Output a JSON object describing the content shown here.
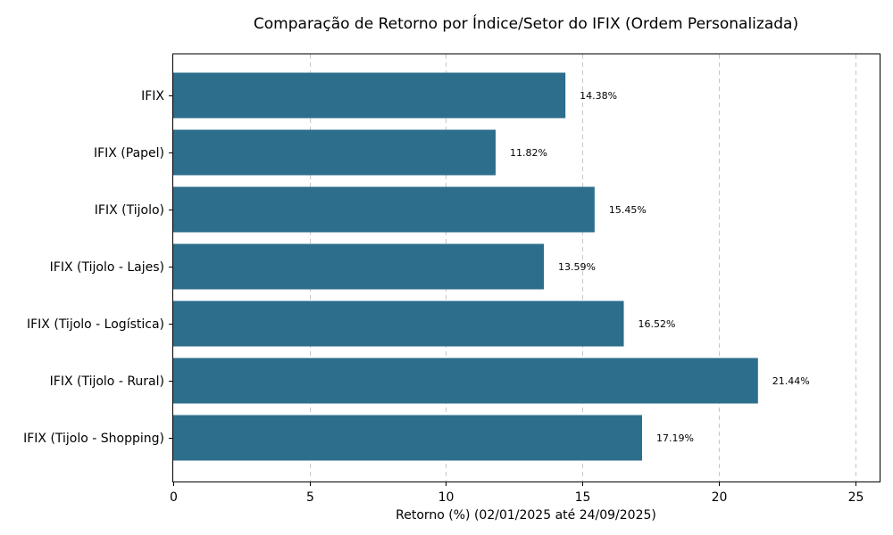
{
  "chart_data": {
    "type": "bar",
    "orientation": "horizontal",
    "title": "Comparação de Retorno por Índice/Setor do IFIX (Ordem Personalizada)",
    "xlabel": "Retorno (%) (02/01/2025 até 24/09/2025)",
    "ylabel": "",
    "categories": [
      "IFIX",
      "IFIX (Papel)",
      "IFIX (Tijolo)",
      "IFIX (Tijolo - Lajes)",
      "IFIX (Tijolo - Logística)",
      "IFIX (Tijolo - Rural)",
      "IFIX (Tijolo - Shopping)"
    ],
    "values": [
      14.38,
      11.82,
      15.45,
      13.59,
      16.52,
      21.44,
      17.19
    ],
    "data_labels": [
      "14.38%",
      "11.82%",
      "15.45%",
      "13.59%",
      "16.52%",
      "21.44%",
      "17.19%"
    ],
    "xlim": [
      0,
      25.9
    ],
    "xticks": [
      0,
      5,
      10,
      15,
      20,
      25
    ],
    "grid": "x-dashed",
    "bar_color": "#2c6e8c"
  }
}
